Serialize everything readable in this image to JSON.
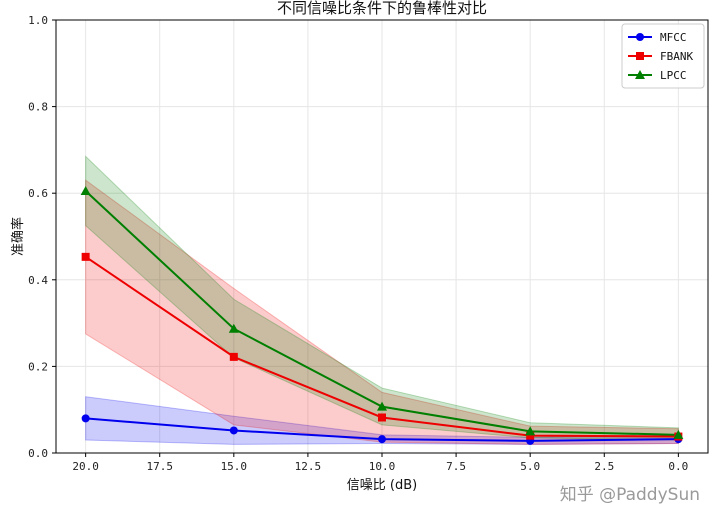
{
  "chart_data": {
    "type": "line",
    "title": "不同信噪比条件下的鲁棒性对比",
    "xlabel": "信噪比 (dB)",
    "ylabel": "准确率",
    "x": [
      20.0,
      15.0,
      10.0,
      5.0,
      0.0
    ],
    "xlim": [
      21.0,
      -1.0
    ],
    "xticks": [
      20.0,
      17.5,
      15.0,
      12.5,
      10.0,
      7.5,
      5.0,
      2.5,
      0.0
    ],
    "xtick_labels": [
      "20.0",
      "17.5",
      "15.0",
      "12.5",
      "10.0",
      "7.5",
      "5.0",
      "2.5",
      "0.0"
    ],
    "ylim": [
      0.0,
      1.0
    ],
    "yticks": [
      0.0,
      0.2,
      0.4,
      0.6,
      0.8,
      1.0
    ],
    "ytick_labels": [
      "0.0",
      "0.2",
      "0.4",
      "0.6",
      "0.8",
      "1.0"
    ],
    "grid": true,
    "legend_position": "top-right",
    "series": [
      {
        "name": "MFCC",
        "color": "#0000ee",
        "marker": "circle",
        "values": [
          0.08,
          0.052,
          0.032,
          0.028,
          0.032
        ],
        "band_low": [
          0.03,
          0.02,
          0.022,
          0.02,
          0.022
        ],
        "band_high": [
          0.13,
          0.085,
          0.042,
          0.036,
          0.042
        ]
      },
      {
        "name": "FBANK",
        "color": "#ee0000",
        "marker": "square",
        "values": [
          0.453,
          0.222,
          0.082,
          0.04,
          0.038
        ],
        "band_low": [
          0.275,
          0.065,
          0.025,
          0.02,
          0.022
        ],
        "band_high": [
          0.63,
          0.38,
          0.14,
          0.062,
          0.056
        ]
      },
      {
        "name": "LPCC",
        "color": "#007f00",
        "marker": "triangle",
        "values": [
          0.605,
          0.287,
          0.107,
          0.05,
          0.042
        ],
        "band_low": [
          0.525,
          0.22,
          0.065,
          0.035,
          0.03
        ],
        "band_high": [
          0.685,
          0.355,
          0.15,
          0.07,
          0.058
        ]
      }
    ]
  },
  "watermark": "知乎 @PaddySun"
}
